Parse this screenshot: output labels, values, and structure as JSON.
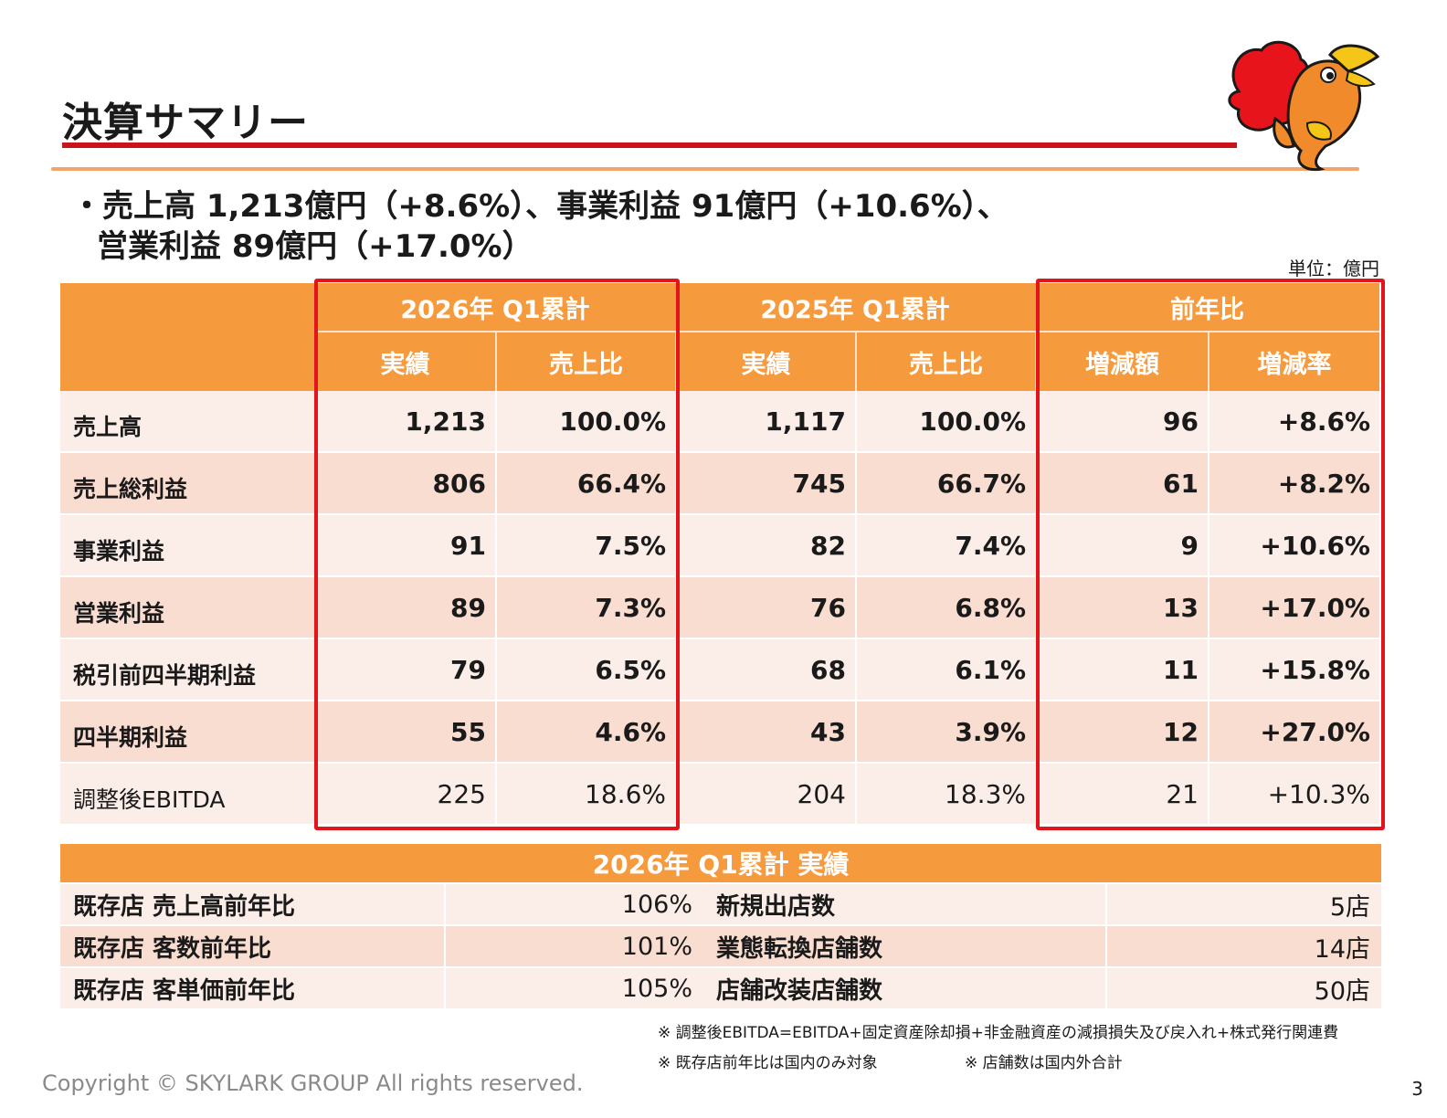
{
  "title": "決算サマリー",
  "summary": {
    "line1": "・売上高 1,213億円（+8.6%）、事業利益 91億円（+10.6%）、",
    "line2": "営業利益 89億円（+17.0%）"
  },
  "unit": "単位：億円",
  "main_table": {
    "groups": [
      "2026年 Q1累計",
      "2025年 Q1累計",
      "前年比"
    ],
    "subheaders": [
      "実績",
      "売上比",
      "実績",
      "売上比",
      "増減額",
      "増減率"
    ],
    "rows": [
      {
        "label": "売上高",
        "values": [
          "1,213",
          "100.0%",
          "1,117",
          "100.0%",
          "96",
          "+8.6%"
        ]
      },
      {
        "label": "売上総利益",
        "values": [
          "806",
          "66.4%",
          "745",
          "66.7%",
          "61",
          "+8.2%"
        ]
      },
      {
        "label": "事業利益",
        "values": [
          "91",
          "7.5%",
          "82",
          "7.4%",
          "9",
          "+10.6%"
        ]
      },
      {
        "label": "営業利益",
        "values": [
          "89",
          "7.3%",
          "76",
          "6.8%",
          "13",
          "+17.0%"
        ]
      },
      {
        "label": "税引前四半期利益",
        "values": [
          "79",
          "6.5%",
          "68",
          "6.1%",
          "11",
          "+15.8%"
        ]
      },
      {
        "label": "四半期利益",
        "values": [
          "55",
          "4.6%",
          "43",
          "3.9%",
          "12",
          "+27.0%"
        ]
      },
      {
        "label": "調整後EBITDA",
        "values": [
          "225",
          "18.6%",
          "204",
          "18.3%",
          "21",
          "+10.3%"
        ]
      }
    ]
  },
  "kpi_table": {
    "header": "2026年 Q1累計 実績",
    "rows": [
      {
        "label1": "既存店 売上高前年比",
        "value1": "106%",
        "label2": "新規出店数",
        "value2": "5店"
      },
      {
        "label1": "既存店 客数前年比",
        "value1": "101%",
        "label2": "業態転換店舗数",
        "value2": "14店"
      },
      {
        "label1": "既存店 客単価前年比",
        "value1": "105%",
        "label2": "店舗改装店舗数",
        "value2": "50店"
      }
    ]
  },
  "notes": {
    "ebitda": "※ 調整後EBITDA=EBITDA+固定資産除却損+非金融資産の減損損失及び戻入れ+株式発行関連費",
    "existing": "※ 既存店前年比は国内のみ対象",
    "stores": "※ 店舗数は国内外合計"
  },
  "copyright": "Copyright © SKYLARK GROUP All rights reserved.",
  "page_number": "3",
  "colors": {
    "header_orange": "#f69a3e",
    "highlight_red": "#e2151d",
    "title_rule_red": "#c9141c",
    "row_light": "#fbede7",
    "row_dark": "#f9ddd1"
  },
  "mascot_icon": "chicken-mascot-icon"
}
